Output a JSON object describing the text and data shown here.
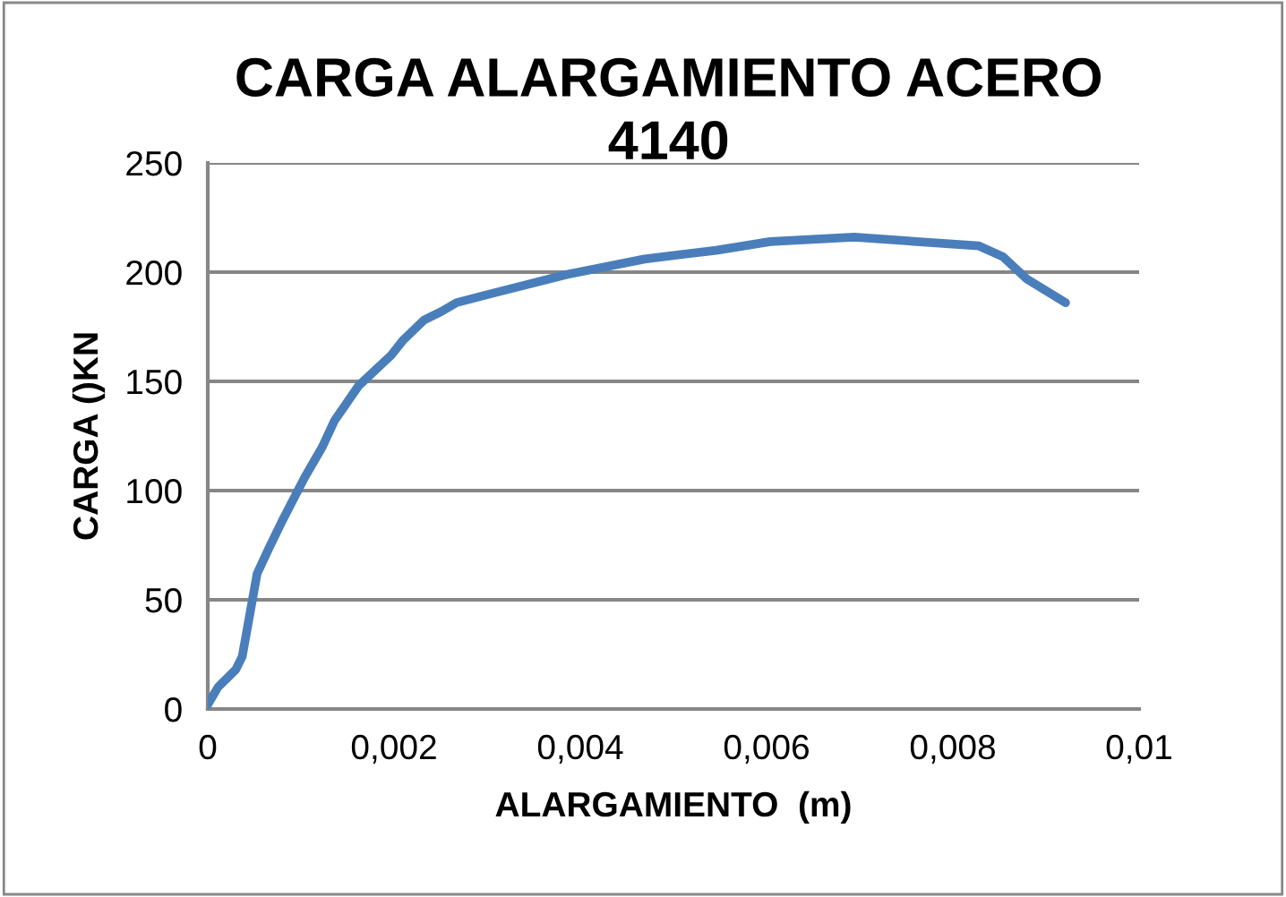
{
  "chart_data": {
    "type": "line",
    "title": "CARGA ALARGAMIENTO ACERO\n4140",
    "xlabel": "ALARGAMIENTO  (m)",
    "ylabel": "CARGA ()KN",
    "xlim": [
      0,
      0.01
    ],
    "xticks": [
      {
        "value": 0,
        "label": "0"
      },
      {
        "value": 0.002,
        "label": "0,002"
      },
      {
        "value": 0.004,
        "label": "0,004"
      },
      {
        "value": 0.006,
        "label": "0,006"
      },
      {
        "value": 0.008,
        "label": "0,008"
      },
      {
        "value": 0.01,
        "label": "0,01"
      }
    ],
    "ylim": [
      0,
      250
    ],
    "yticks": [
      0,
      50,
      100,
      150,
      200,
      250
    ],
    "grid": "y",
    "marker": "none",
    "line_style": "solid",
    "series": [
      {
        "color": "#4a7ebb",
        "x": [
          0,
          0.00011,
          0.0003,
          0.00037,
          0.00053,
          0.00065,
          0.00081,
          0.00104,
          0.00123,
          0.00136,
          0.00162,
          0.00197,
          0.0021,
          0.00232,
          0.00251,
          0.00267,
          0.00303,
          0.00386,
          0.00469,
          0.00546,
          0.00604,
          0.00694,
          0.00828,
          0.00854,
          0.00879,
          0.00921
        ],
        "values": [
          2,
          10,
          18,
          24,
          62,
          73,
          87,
          106,
          120,
          132,
          148,
          162,
          169,
          178,
          182,
          186,
          190,
          199,
          206,
          210,
          214,
          216,
          212,
          207,
          197,
          186
        ]
      }
    ]
  }
}
